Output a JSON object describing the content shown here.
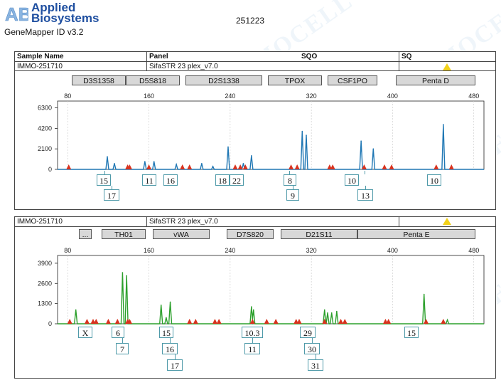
{
  "brand": {
    "line1": "Applied",
    "line2": "Biosystems",
    "logo_text": "AB"
  },
  "software": "GeneMapper ID v3.2",
  "run_id": "251223",
  "watermark_text": "IMMOCELL",
  "header": {
    "sample_name": "Sample Name",
    "panel": "Panel",
    "sqo": "SQO",
    "sq": "SQ"
  },
  "panels": [
    {
      "sample": "IMMO-251710",
      "panel_name": "SifaSTR 23 plex_v7.0",
      "color": "#1f77b4",
      "markers": [
        "D3S1358",
        "D5S818",
        "D2S1338",
        "TPOX",
        "CSF1PO",
        "Penta D"
      ],
      "alleles_top": [
        "15",
        "11",
        "16",
        "18",
        "22",
        "8",
        "10",
        "10"
      ],
      "alleles_bottom": [
        "17",
        "9",
        "13"
      ]
    },
    {
      "sample": "IMMO-251710",
      "panel_name": "SifaSTR 23 plex_v7.0",
      "color": "#2ca02c",
      "markers": [
        "...",
        "TH01",
        "vWA",
        "D7S820",
        "D21S11",
        "Penta E"
      ],
      "alleles_top": [
        "X",
        "6",
        "15",
        "10.3",
        "29",
        "15"
      ],
      "alleles_mid": [
        "7",
        "16",
        "11",
        "30"
      ],
      "alleles_bottom": [
        "17",
        "31"
      ]
    }
  ],
  "chart_data": [
    {
      "type": "line",
      "color": "#1f77b4",
      "x_ticks": [
        80,
        160,
        240,
        320,
        400,
        480
      ],
      "y_ticks": [
        0,
        2100,
        4200,
        6300
      ],
      "xlim": [
        70,
        490
      ],
      "ylim": [
        0,
        7000
      ],
      "peaks": [
        {
          "x": 119,
          "y": 1300
        },
        {
          "x": 126,
          "y": 600
        },
        {
          "x": 156,
          "y": 800
        },
        {
          "x": 165,
          "y": 800
        },
        {
          "x": 187,
          "y": 500
        },
        {
          "x": 212,
          "y": 600
        },
        {
          "x": 223,
          "y": 300
        },
        {
          "x": 238,
          "y": 2300
        },
        {
          "x": 253,
          "y": 600
        },
        {
          "x": 261,
          "y": 1400
        },
        {
          "x": 311,
          "y": 3900
        },
        {
          "x": 315,
          "y": 3500
        },
        {
          "x": 369,
          "y": 2900
        },
        {
          "x": 381,
          "y": 2100
        },
        {
          "x": 450,
          "y": 4600
        }
      ],
      "size_std_peaks": [
        81,
        139,
        141,
        160,
        193,
        200,
        245,
        250,
        255,
        300,
        306,
        338,
        341,
        372,
        392,
        399,
        443,
        458,
        508
      ]
    },
    {
      "type": "line",
      "color": "#2ca02c",
      "x_ticks": [
        80,
        160,
        240,
        320,
        400,
        480
      ],
      "y_ticks": [
        0,
        1300,
        2600,
        3900
      ],
      "xlim": [
        70,
        490
      ],
      "ylim": [
        0,
        4400
      ],
      "peaks": [
        {
          "x": 88,
          "y": 900
        },
        {
          "x": 134,
          "y": 3300
        },
        {
          "x": 138,
          "y": 3100
        },
        {
          "x": 172,
          "y": 1200
        },
        {
          "x": 177,
          "y": 400
        },
        {
          "x": 181,
          "y": 1400
        },
        {
          "x": 261,
          "y": 1100
        },
        {
          "x": 263,
          "y": 900
        },
        {
          "x": 333,
          "y": 900
        },
        {
          "x": 336,
          "y": 700
        },
        {
          "x": 340,
          "y": 700
        },
        {
          "x": 345,
          "y": 800
        },
        {
          "x": 431,
          "y": 1900
        },
        {
          "x": 454,
          "y": 250
        }
      ],
      "size_std_peaks": [
        82,
        99,
        105,
        108,
        120,
        129,
        139,
        141,
        200,
        206,
        225,
        229,
        262,
        276,
        285,
        305,
        308,
        333,
        349,
        353,
        393,
        396,
        433,
        450,
        508
      ]
    }
  ]
}
